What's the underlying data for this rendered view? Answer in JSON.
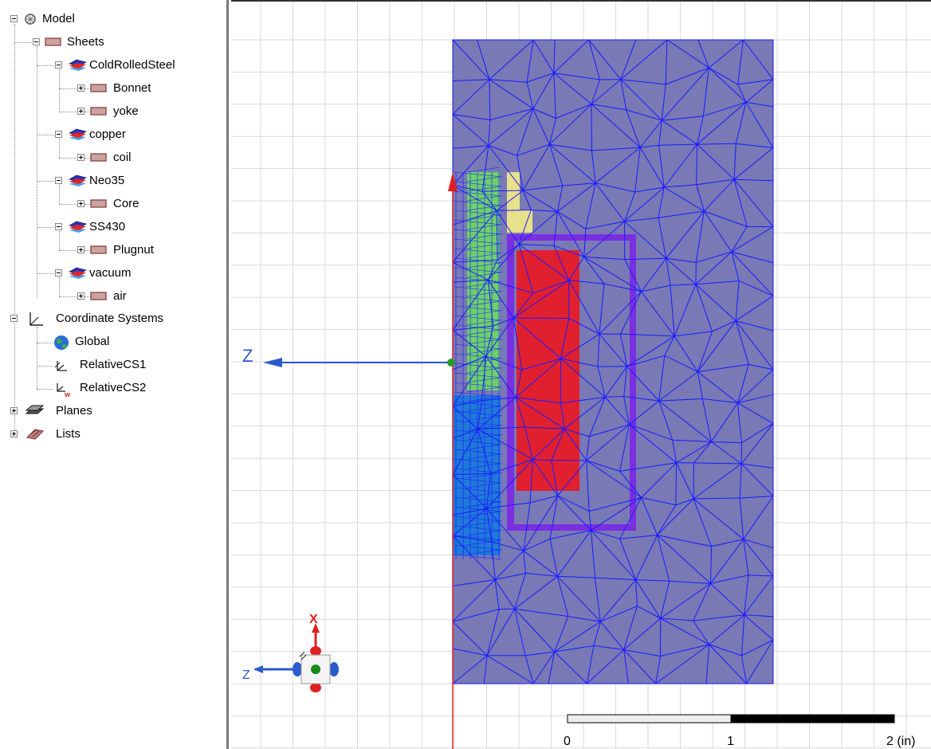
{
  "tree": {
    "model": "Model",
    "sheets": "Sheets",
    "materials": [
      {
        "name": "ColdRolledSteel",
        "objects": [
          "Bonnet",
          "yoke"
        ]
      },
      {
        "name": "copper",
        "objects": [
          "coil"
        ]
      },
      {
        "name": "Neo35",
        "objects": [
          "Core"
        ]
      },
      {
        "name": "SS430",
        "objects": [
          "Plugnut"
        ]
      },
      {
        "name": "vacuum",
        "objects": [
          "air"
        ]
      }
    ],
    "coordinate_systems": "Coordinate Systems",
    "cs_items": [
      "Global",
      "RelativeCS1",
      "RelativeCS2"
    ],
    "planes": "Planes",
    "lists": "Lists"
  },
  "viewport": {
    "axis_z_label": "Z",
    "triad_x_label": "X",
    "triad_z_label": "Z",
    "scale": {
      "labels": [
        "0",
        "1",
        "2 (in)"
      ]
    },
    "colors": {
      "grid": "#d8d8e0",
      "air_region": "#7879b5",
      "mesh_line": "#1a1aff",
      "coil": "#e0202e",
      "yoke": "#7a2fe0",
      "core": "#1f7ad8",
      "plugnut": "#6dd06a",
      "bonnet": "#e8e08a",
      "axis_x": "#e02020",
      "axis_z": "#2a5acc"
    }
  }
}
